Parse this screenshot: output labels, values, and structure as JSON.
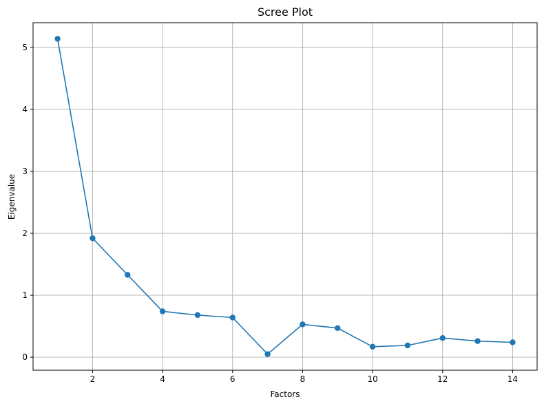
{
  "chart_data": {
    "type": "line",
    "title": "Scree Plot",
    "xlabel": "Factors",
    "ylabel": "Eigenvalue",
    "xlim": [
      0.3,
      14.7
    ],
    "ylim": [
      -0.21,
      5.4
    ],
    "xticks": [
      2,
      4,
      6,
      8,
      10,
      12,
      14
    ],
    "yticks": [
      0,
      1,
      2,
      3,
      4,
      5
    ],
    "grid": true,
    "color": "#1f77b4",
    "marker": "circle",
    "x": [
      1,
      2,
      3,
      4,
      5,
      6,
      7,
      8,
      9,
      10,
      11,
      12,
      13,
      14
    ],
    "y": [
      5.14,
      1.92,
      1.33,
      0.74,
      0.68,
      0.64,
      0.05,
      0.53,
      0.47,
      0.17,
      0.19,
      0.31,
      0.26,
      0.24
    ]
  }
}
